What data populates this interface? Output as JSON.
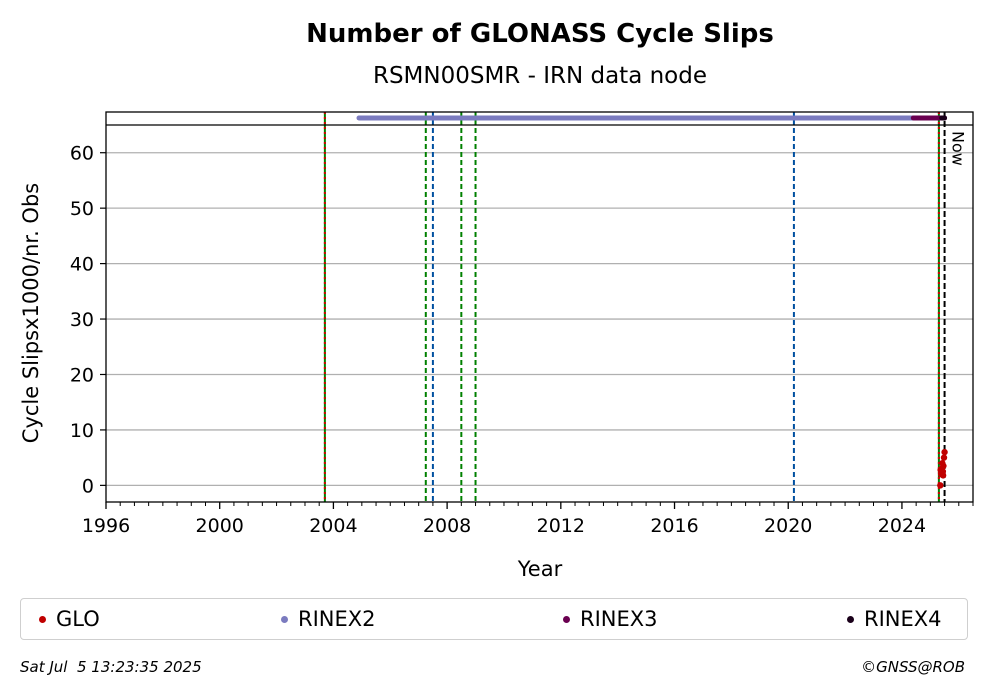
{
  "chart_data": {
    "type": "scatter",
    "title": "Number of GLONASS Cycle Slips",
    "subtitle": "RSMN00SMR - IRN data node",
    "xlabel": "Year",
    "ylabel": "Cycle Slipsx1000/nr. Obs",
    "xlim": [
      1996,
      2026.5
    ],
    "ylim": [
      -3,
      65
    ],
    "x_ticks": [
      1996,
      2000,
      2004,
      2008,
      2012,
      2016,
      2020,
      2024
    ],
    "y_ticks": [
      0,
      10,
      20,
      30,
      40,
      50,
      60
    ],
    "grid": "horizontal",
    "now_label": "Now",
    "now_x": 2025.5,
    "vlines": [
      {
        "x": 2003.7,
        "color": "#008000",
        "style": "solid"
      },
      {
        "x": 2003.7,
        "color": "#cc0000",
        "style": "dotted"
      },
      {
        "x": 2007.25,
        "color": "#008000",
        "style": "dashed"
      },
      {
        "x": 2007.5,
        "color": "#0050a0",
        "style": "dashed"
      },
      {
        "x": 2008.5,
        "color": "#008000",
        "style": "dashed"
      },
      {
        "x": 2009.0,
        "color": "#008000",
        "style": "dashed"
      },
      {
        "x": 2020.2,
        "color": "#0050a0",
        "style": "dashed"
      },
      {
        "x": 2025.3,
        "color": "#008000",
        "style": "solid"
      },
      {
        "x": 2025.3,
        "color": "#cc0000",
        "style": "dotted"
      }
    ],
    "series": [
      {
        "name": "GLO",
        "color": "#c00000",
        "x": [
          2025.35,
          2025.38,
          2025.4,
          2025.42,
          2025.44,
          2025.46,
          2025.48,
          2025.5,
          2025.36,
          2025.45
        ],
        "y": [
          0,
          2,
          3,
          4,
          2.5,
          3.5,
          5,
          6,
          2.8,
          1.8
        ]
      },
      {
        "name": "RINEX2",
        "color": "#7b7bbf",
        "range": [
          2004.9,
          2025.3
        ]
      },
      {
        "name": "RINEX3",
        "color": "#6a0050",
        "range": [
          2024.4,
          2025.5
        ]
      },
      {
        "name": "RINEX4",
        "color": "#1a001a",
        "range": [
          2025.4,
          2025.5
        ]
      }
    ]
  },
  "legend": [
    "GLO",
    "RINEX2",
    "RINEX3",
    "RINEX4"
  ],
  "footer": {
    "timestamp": "Sat Jul  5 13:23:35 2025",
    "credit": "©GNSS@ROB"
  }
}
